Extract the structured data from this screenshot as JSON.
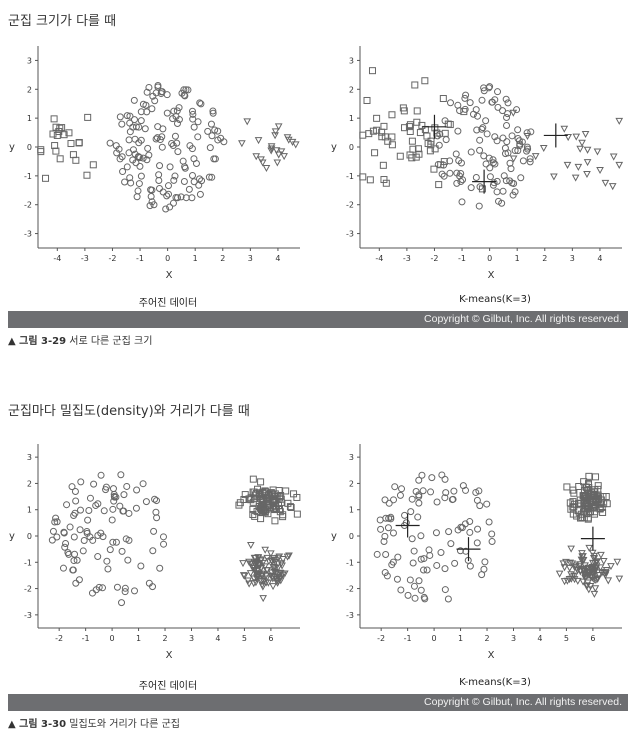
{
  "section1": {
    "title": "군집 크기가 다를 때",
    "subcaptions": [
      "주어진 데이터",
      "K-means(K=3)"
    ],
    "copyright": "Copyright © Gilbut, Inc. All rights reserved.",
    "fig_label": "▲ 그림 3-29",
    "fig_text": "서로 다른 군집 크기"
  },
  "section2": {
    "title": "군집마다 밀집도(density)와 거리가 다를 때",
    "subcaptions": [
      "주어진 데이터",
      "K-means(K=3)"
    ],
    "copyright": "Copyright © Gilbut, Inc. All rights reserved.",
    "fig_label": "▲ 그림 3-30",
    "fig_text": "밀집도와 거리가 다른 군집"
  },
  "chart_data": [
    {
      "type": "scatter",
      "panel": "주어진 데이터",
      "xlabel": "X",
      "ylabel": "y",
      "xlim": [
        -4.7,
        4.8
      ],
      "ylim": [
        -3.5,
        3.5
      ],
      "xticks": [
        -4,
        -3,
        -2,
        -1,
        0,
        1,
        2,
        3,
        4
      ],
      "yticks": [
        -3,
        -2,
        -1,
        0,
        1,
        2,
        3
      ],
      "grid": false,
      "point_color": "#666666",
      "series": [
        {
          "marker": "square",
          "center": [
            -3.8,
            0.0
          ],
          "count": 23,
          "spread": [
            0.55,
            0.5
          ]
        },
        {
          "marker": "circle",
          "center": [
            0.0,
            0.0
          ],
          "count": 150,
          "spread": [
            1.6,
            1.5
          ]
        },
        {
          "marker": "triangle",
          "center": [
            3.8,
            0.0
          ],
          "count": 22,
          "spread": [
            0.45,
            0.45
          ]
        }
      ]
    },
    {
      "type": "scatter",
      "panel": "K-means(K=3)",
      "xlabel": "X",
      "ylabel": "y",
      "xlim": [
        -4.7,
        4.8
      ],
      "ylim": [
        -3.5,
        3.5
      ],
      "xticks": [
        -4,
        -3,
        -2,
        -1,
        0,
        1,
        2,
        3,
        4
      ],
      "yticks": [
        -3,
        -2,
        -1,
        0,
        1,
        2,
        3
      ],
      "grid": false,
      "point_color": "#666666",
      "series": [
        {
          "marker": "square",
          "center": [
            -3.0,
            0.3
          ],
          "count": 60,
          "spread": [
            1.1,
            0.8
          ]
        },
        {
          "marker": "circle",
          "center": [
            -0.2,
            0.0
          ],
          "count": 110,
          "spread": [
            1.3,
            1.5
          ]
        },
        {
          "marker": "triangle",
          "center": [
            3.2,
            0.0
          ],
          "count": 25,
          "spread": [
            0.9,
            0.7
          ]
        }
      ],
      "centroids": [
        [
          -2.0,
          0.7
        ],
        [
          -0.2,
          -1.2
        ],
        [
          2.4,
          0.4
        ]
      ]
    },
    {
      "type": "scatter",
      "panel": "주어진 데이터",
      "xlabel": "X",
      "ylabel": "y",
      "xlim": [
        -2.8,
        7.1
      ],
      "ylim": [
        -3.5,
        3.5
      ],
      "xticks": [
        -2,
        -1,
        0,
        1,
        2,
        3,
        4,
        5,
        6
      ],
      "yticks": [
        -3,
        -2,
        -1,
        0,
        1,
        2,
        3
      ],
      "grid": false,
      "point_color": "#666666",
      "series": [
        {
          "marker": "circle",
          "center": [
            0.0,
            0.0
          ],
          "count": 100,
          "spread": [
            1.7,
            1.8
          ]
        },
        {
          "marker": "square",
          "center": [
            5.8,
            1.3
          ],
          "count": 100,
          "spread": [
            0.4,
            0.35
          ]
        },
        {
          "marker": "triangle",
          "center": [
            5.8,
            -1.3
          ],
          "count": 100,
          "spread": [
            0.4,
            0.35
          ]
        }
      ]
    },
    {
      "type": "scatter",
      "panel": "K-means(K=3)",
      "xlabel": "X",
      "ylabel": "y",
      "xlim": [
        -2.8,
        7.1
      ],
      "ylim": [
        -3.5,
        3.5
      ],
      "xticks": [
        -2,
        -1,
        0,
        1,
        2,
        3,
        4,
        5,
        6
      ],
      "yticks": [
        -3,
        -2,
        -1,
        0,
        1,
        2,
        3
      ],
      "grid": false,
      "point_color": "#666666",
      "series": [
        {
          "marker": "circle",
          "center": [
            0.0,
            0.0
          ],
          "count": 100,
          "spread": [
            1.7,
            1.8
          ]
        },
        {
          "marker": "square",
          "center": [
            5.8,
            1.3
          ],
          "count": 100,
          "spread": [
            0.4,
            0.35
          ]
        },
        {
          "marker": "triangle",
          "center": [
            5.8,
            -1.3
          ],
          "count": 100,
          "spread": [
            0.4,
            0.35
          ]
        }
      ],
      "centroids": [
        [
          -1.0,
          0.4
        ],
        [
          1.3,
          -0.5
        ],
        [
          6.0,
          -0.1
        ]
      ]
    }
  ]
}
